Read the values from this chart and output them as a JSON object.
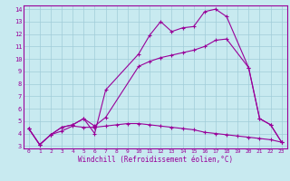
{
  "title": "",
  "xlabel": "Windchill (Refroidissement éolien,°C)",
  "background_color": "#c8eaf0",
  "line_color": "#990099",
  "grid_color": "#a0ccd8",
  "xlim": [
    -0.5,
    23.5
  ],
  "ylim": [
    2.8,
    14.3
  ],
  "xticks": [
    0,
    1,
    2,
    3,
    4,
    5,
    6,
    7,
    8,
    9,
    10,
    11,
    12,
    13,
    14,
    15,
    16,
    17,
    18,
    19,
    20,
    21,
    22,
    23
  ],
  "yticks": [
    3,
    4,
    5,
    6,
    7,
    8,
    9,
    10,
    11,
    12,
    13,
    14
  ],
  "line1": {
    "x": [
      0,
      1,
      2,
      3,
      4,
      5,
      6,
      7,
      10,
      11,
      12,
      13,
      14,
      15,
      16,
      17,
      18,
      20,
      21,
      22,
      23
    ],
    "y": [
      4.4,
      3.1,
      3.9,
      4.5,
      4.7,
      5.2,
      4.0,
      7.5,
      10.4,
      11.9,
      13.0,
      12.2,
      12.5,
      12.6,
      13.8,
      14.0,
      13.4,
      9.3,
      5.2,
      4.7,
      3.3
    ]
  },
  "line2": {
    "x": [
      0,
      1,
      2,
      3,
      4,
      5,
      6,
      7,
      10,
      11,
      12,
      13,
      14,
      15,
      16,
      17,
      18,
      20,
      21,
      22,
      23
    ],
    "y": [
      4.4,
      3.1,
      3.9,
      4.5,
      4.7,
      5.2,
      4.6,
      5.3,
      9.4,
      9.8,
      10.1,
      10.3,
      10.5,
      10.7,
      11.0,
      11.5,
      11.6,
      9.3,
      5.2,
      4.7,
      3.3
    ]
  },
  "line3": {
    "x": [
      0,
      1,
      2,
      3,
      4,
      5,
      6,
      7,
      8,
      9,
      10,
      11,
      12,
      13,
      14,
      15,
      16,
      17,
      18,
      19,
      20,
      21,
      22,
      23
    ],
    "y": [
      4.4,
      3.1,
      3.9,
      4.2,
      4.6,
      4.5,
      4.5,
      4.6,
      4.7,
      4.8,
      4.8,
      4.7,
      4.6,
      4.5,
      4.4,
      4.3,
      4.1,
      4.0,
      3.9,
      3.8,
      3.7,
      3.6,
      3.5,
      3.3
    ]
  }
}
